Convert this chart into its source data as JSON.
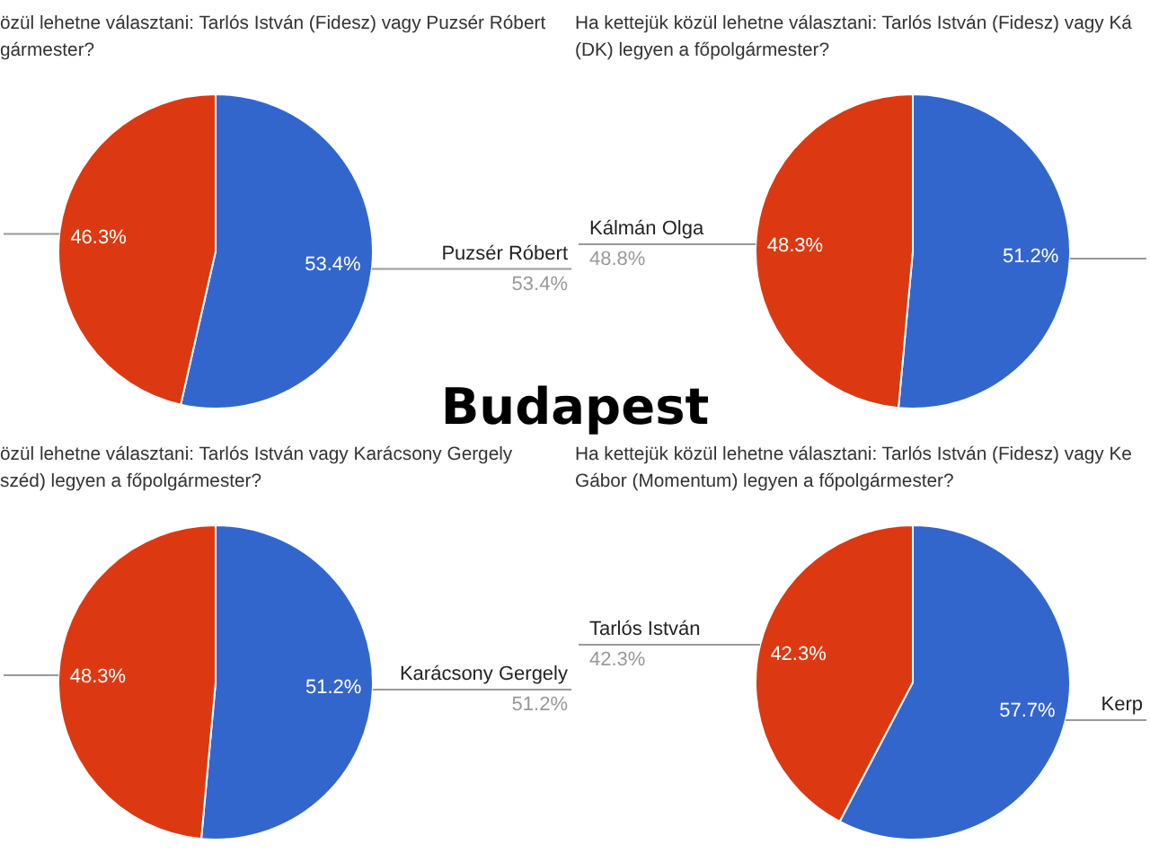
{
  "chart_data": [
    {
      "type": "pie",
      "title": "özül lehetne választani: Tarlós István (Fidesz) vagy Puzsér Róbert\ngármester?",
      "categories": [
        "Puzsér Róbert",
        null
      ],
      "values": [
        53.4,
        46.3
      ],
      "colors": [
        "#3366cc",
        "#dc3912"
      ],
      "value_labels": [
        "53.4%",
        "46.3%"
      ],
      "annotations": [
        "Budapest",
        {
          "text": "53.4%",
          "x": "Puzsér Róbert"
        }
      ]
    },
    {
      "type": "pie",
      "title": "Ha kettejük közül lehetne választani: Tarlós István (Fidesz) vagy Ká\n(DK) legyen a főpolgármester?",
      "categories": [
        null,
        "Kálmán Olga"
      ],
      "values": [
        51.2,
        48.3
      ],
      "colors": [
        "#3366cc",
        "#dc3912"
      ],
      "value_labels": [
        "51.2%",
        "48.3%"
      ],
      "annotations": [
        {
          "text": "48.8%",
          "x": "Kálmán Olga"
        }
      ]
    },
    {
      "type": "pie",
      "title": "özül lehetne választani: Tarlós István vagy Karácsony Gergely\nszéd) legyen a főpolgármester?",
      "categories": [
        "Karácsony Gergely",
        null
      ],
      "values": [
        51.2,
        48.3
      ],
      "colors": [
        "#3366cc",
        "#dc3912"
      ],
      "value_labels": [
        "51.2%",
        "48.3%"
      ],
      "annotations": [
        {
          "text": "51.2%",
          "x": "Karácsony Gergely"
        }
      ]
    },
    {
      "type": "pie",
      "title": "Ha kettejük közül lehetne választani: Tarlós István (Fidesz) vagy Ke\nGábor (Momentum) legyen a főpolgármester?",
      "categories": [
        "Kerp",
        "Tarlós István"
      ],
      "values": [
        57.7,
        42.3
      ],
      "colors": [
        "#3366cc",
        "#dc3912"
      ],
      "value_labels": [
        "57.7%",
        "42.3%"
      ],
      "annotations": [
        {
          "text": "42.3%",
          "x": "Tarlós István"
        }
      ]
    }
  ]
}
